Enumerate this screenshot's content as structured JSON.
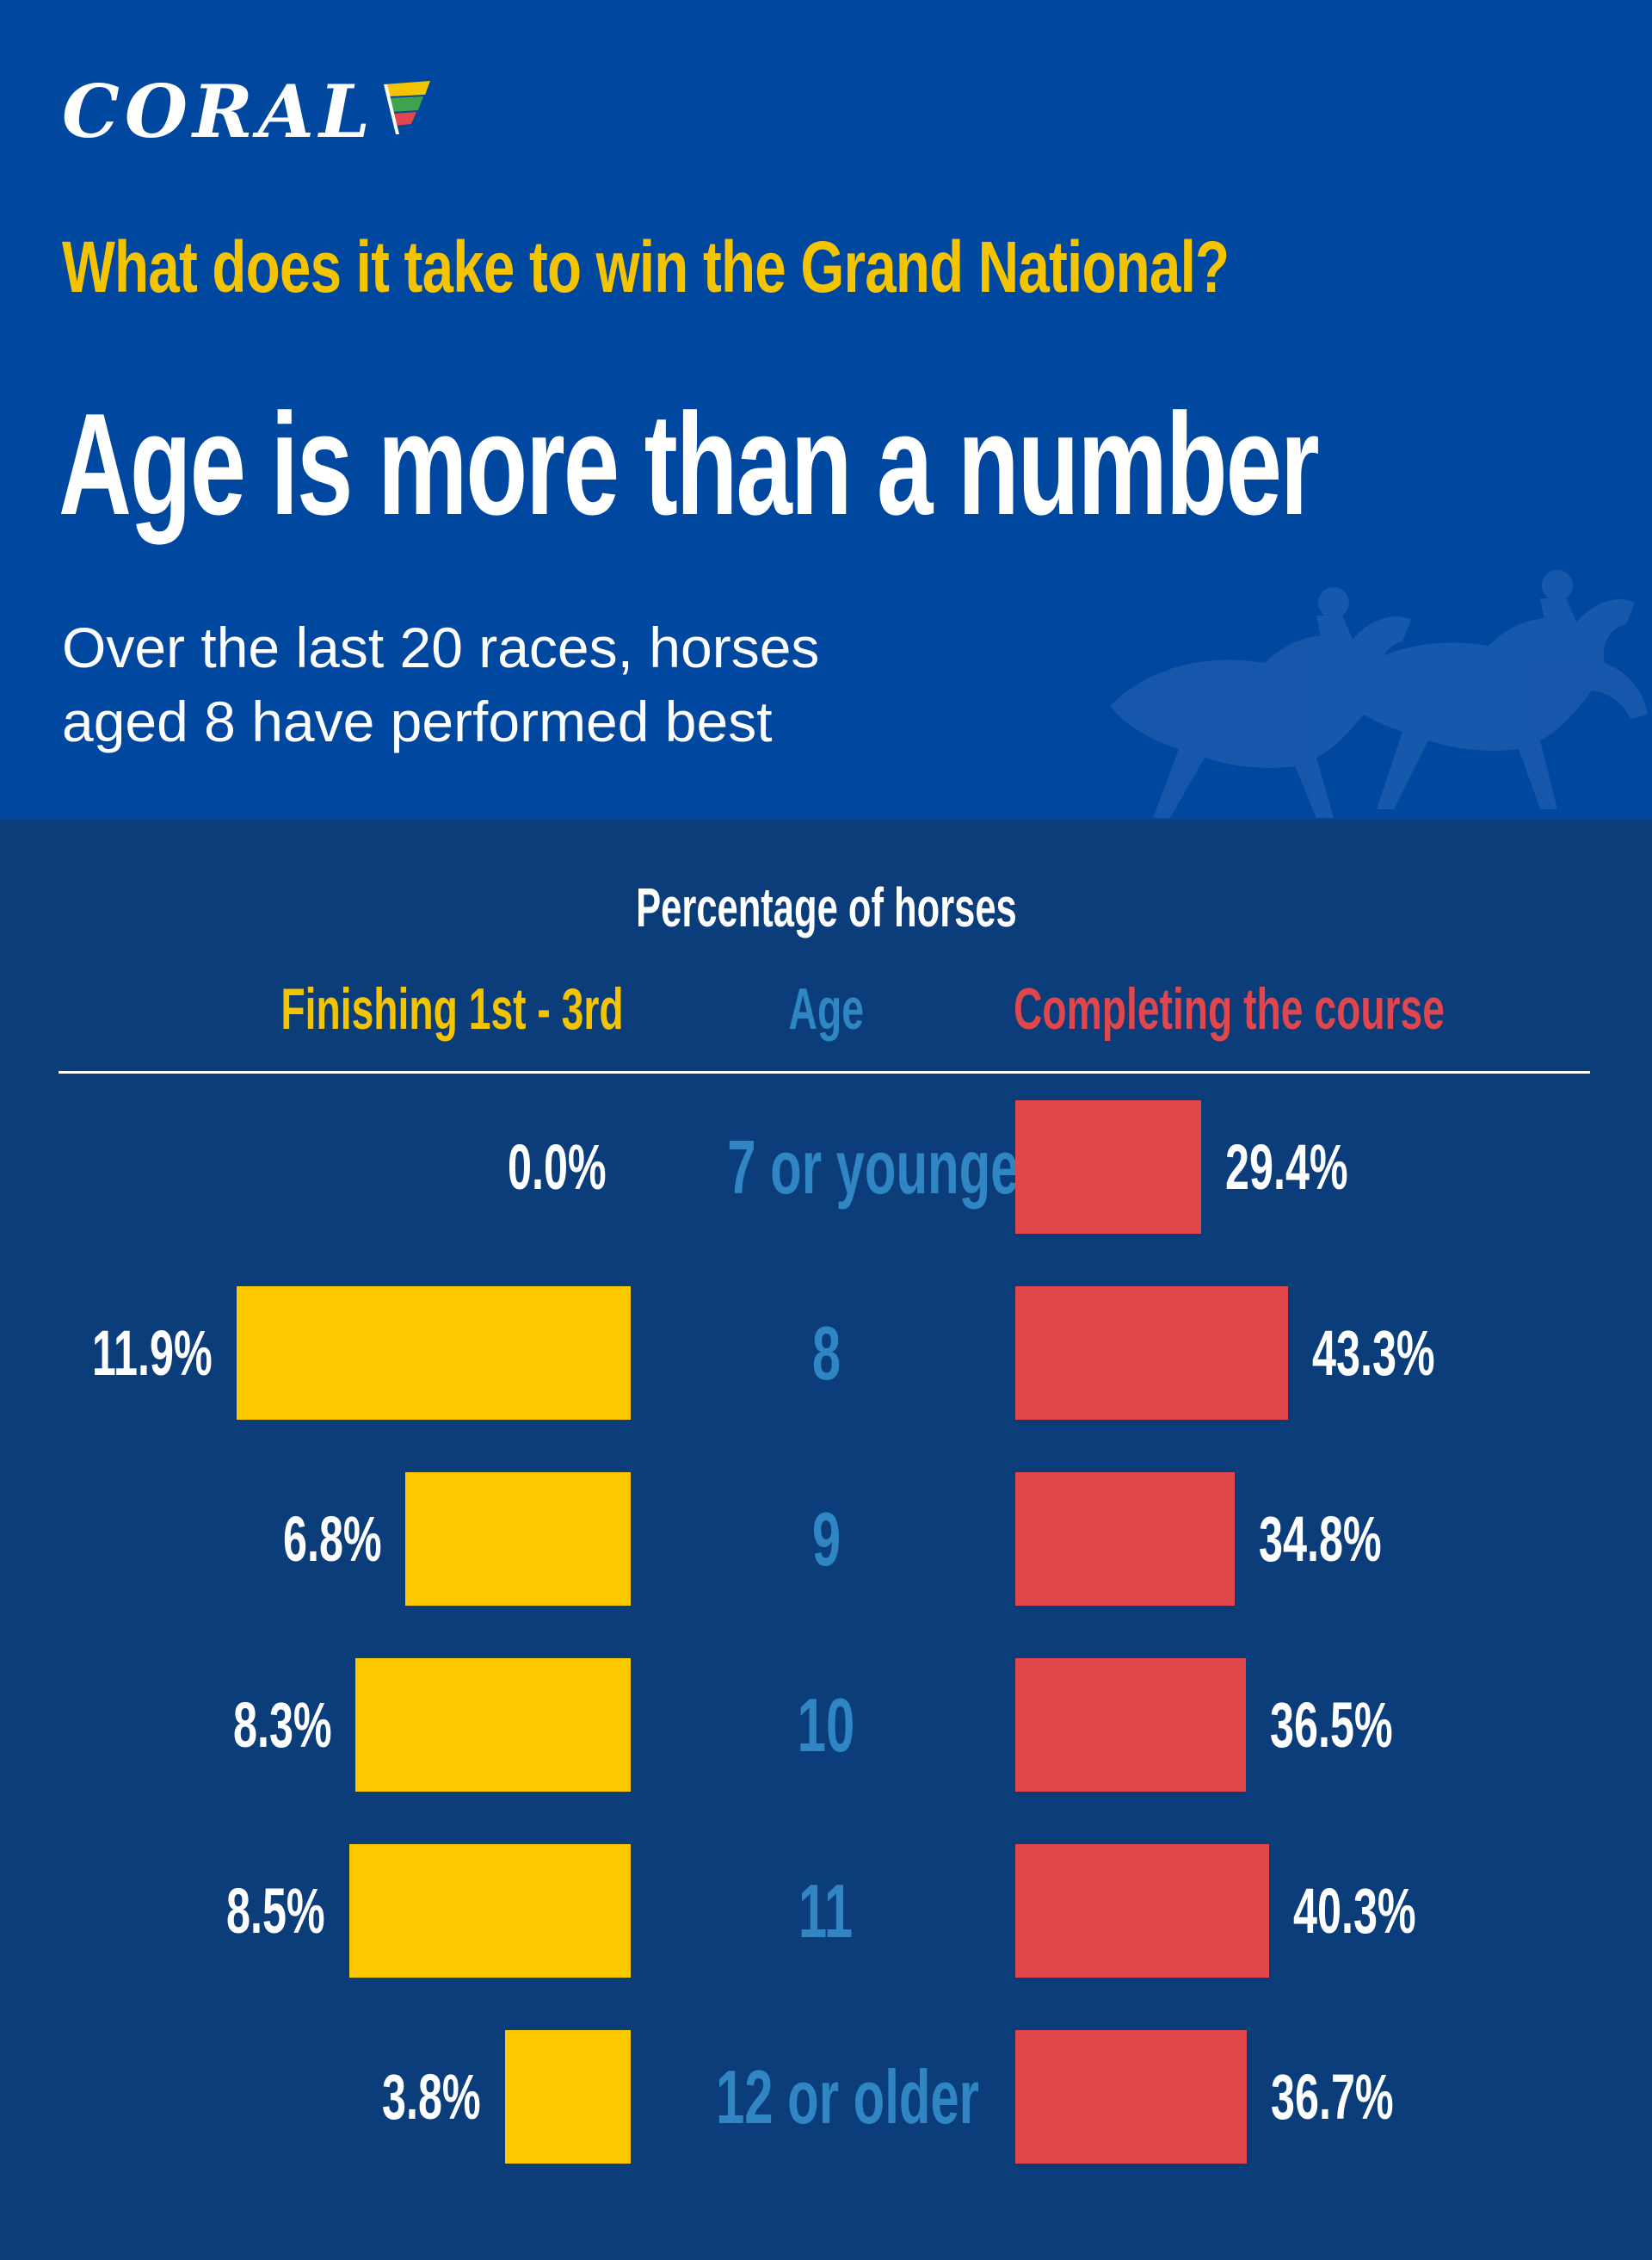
{
  "brand": {
    "name": "CORAL"
  },
  "header": {
    "question": "What does it take to win the Grand National?",
    "headline": "Age is more than a number",
    "subhead": "Over the last 20 races, horses\naged 8 have performed best"
  },
  "colors": {
    "header_bg": "#0047a0",
    "panel_bg": "#0a3d7a",
    "yellow": "#fdc800",
    "red": "#df474a",
    "age_blue": "#2f86c2"
  },
  "chart_data": {
    "type": "bar",
    "title": "Percentage of horses",
    "category_label": "Age",
    "categories": [
      "7 or younger",
      "8",
      "9",
      "10",
      "11",
      "12 or older"
    ],
    "series": [
      {
        "name": "Finishing 1st - 3rd",
        "values": [
          0.0,
          11.9,
          6.8,
          8.3,
          8.5,
          3.8
        ],
        "labels": [
          "0.0%",
          "11.9%",
          "6.8%",
          "8.3%",
          "8.5%",
          "3.8%"
        ]
      },
      {
        "name": "Completing the course",
        "values": [
          29.4,
          43.3,
          34.8,
          36.5,
          40.3,
          36.7
        ],
        "labels": [
          "29.4%",
          "43.3%",
          "34.8%",
          "36.5%",
          "40.3%",
          "36.7%"
        ]
      }
    ],
    "orientation": "horizontal-diverging",
    "grid": false
  }
}
